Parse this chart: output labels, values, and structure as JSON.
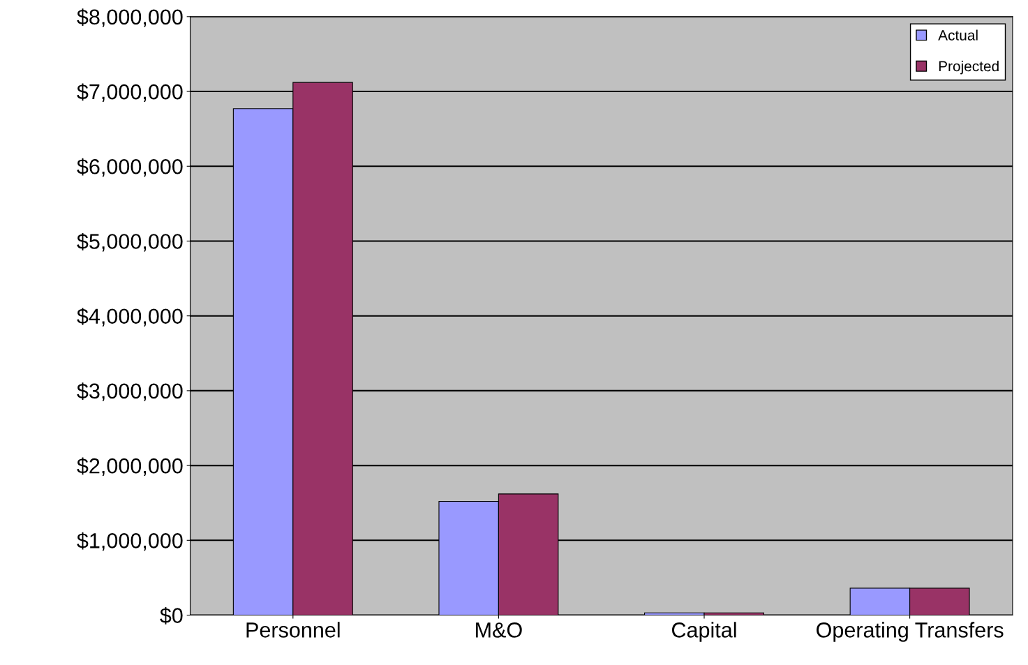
{
  "chart_data": {
    "type": "bar",
    "categories": [
      "Personnel",
      "M&O",
      "Capital",
      "Operating Transfers"
    ],
    "series": [
      {
        "name": "Actual",
        "color": "#9999ff",
        "values": [
          6770000,
          1520000,
          30000,
          360000
        ]
      },
      {
        "name": "Projected",
        "color": "#993366",
        "values": [
          7120000,
          1620000,
          30000,
          360000
        ]
      }
    ],
    "ylim": [
      0,
      8000000
    ],
    "yticks": [
      {
        "value": 0,
        "label": "$0"
      },
      {
        "value": 1000000,
        "label": "$1,000,000"
      },
      {
        "value": 2000000,
        "label": "$2,000,000"
      },
      {
        "value": 3000000,
        "label": "$3,000,000"
      },
      {
        "value": 4000000,
        "label": "$4,000,000"
      },
      {
        "value": 5000000,
        "label": "$5,000,000"
      },
      {
        "value": 6000000,
        "label": "$6,000,000"
      },
      {
        "value": 7000000,
        "label": "$7,000,000"
      },
      {
        "value": 8000000,
        "label": "$8,000,000"
      }
    ],
    "grid": "y",
    "legend": "top right"
  }
}
